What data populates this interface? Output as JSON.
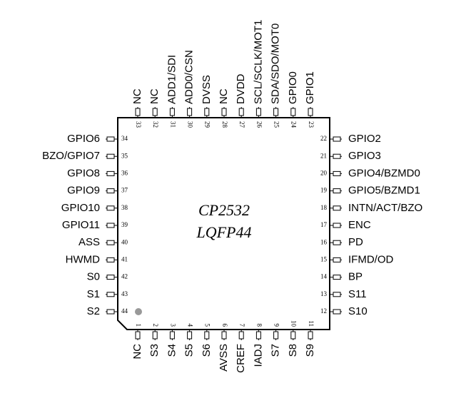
{
  "chip": {
    "name": "CP2532",
    "package": "LQFP44"
  },
  "pins": {
    "top": [
      {
        "number": 33,
        "label": "NC"
      },
      {
        "number": 32,
        "label": "NC"
      },
      {
        "number": 31,
        "label": "ADD1/SDI"
      },
      {
        "number": 30,
        "label": "ADD0/CSN"
      },
      {
        "number": 29,
        "label": "DVSS"
      },
      {
        "number": 28,
        "label": "NC"
      },
      {
        "number": 27,
        "label": "DVDD"
      },
      {
        "number": 26,
        "label": "SCL/SCLK/MOT1"
      },
      {
        "number": 25,
        "label": "SDA/SDO/MOT0"
      },
      {
        "number": 24,
        "label": "GPIO0"
      },
      {
        "number": 23,
        "label": "GPIO1"
      }
    ],
    "left": [
      {
        "number": 34,
        "label": "GPIO6"
      },
      {
        "number": 35,
        "label": "BZO/GPIO7"
      },
      {
        "number": 36,
        "label": "GPIO8"
      },
      {
        "number": 37,
        "label": "GPIO9"
      },
      {
        "number": 38,
        "label": "GPIO10"
      },
      {
        "number": 39,
        "label": "GPIO11"
      },
      {
        "number": 40,
        "label": "ASS"
      },
      {
        "number": 41,
        "label": "HWMD"
      },
      {
        "number": 42,
        "label": "S0"
      },
      {
        "number": 43,
        "label": "S1"
      },
      {
        "number": 44,
        "label": "S2"
      }
    ],
    "bottom": [
      {
        "number": 1,
        "label": "NC"
      },
      {
        "number": 2,
        "label": "S3"
      },
      {
        "number": 3,
        "label": "S4"
      },
      {
        "number": 4,
        "label": "S5"
      },
      {
        "number": 5,
        "label": "S6"
      },
      {
        "number": 6,
        "label": "AVSS"
      },
      {
        "number": 7,
        "label": "CREF"
      },
      {
        "number": 8,
        "label": "IADJ"
      },
      {
        "number": 9,
        "label": "S7"
      },
      {
        "number": 10,
        "label": "S8"
      },
      {
        "number": 11,
        "label": "S9"
      }
    ],
    "right": [
      {
        "number": 22,
        "label": "GPIO2"
      },
      {
        "number": 21,
        "label": "GPIO3"
      },
      {
        "number": 20,
        "label": "GPIO4/BZMD0"
      },
      {
        "number": 19,
        "label": "GPIO5/BZMD1"
      },
      {
        "number": 18,
        "label": "INTN/ACT/BZO"
      },
      {
        "number": 17,
        "label": "ENC"
      },
      {
        "number": 16,
        "label": "PD"
      },
      {
        "number": 15,
        "label": "IFMD/OD"
      },
      {
        "number": 14,
        "label": "BP"
      },
      {
        "number": 13,
        "label": "S11"
      },
      {
        "number": 12,
        "label": "S10"
      }
    ]
  }
}
